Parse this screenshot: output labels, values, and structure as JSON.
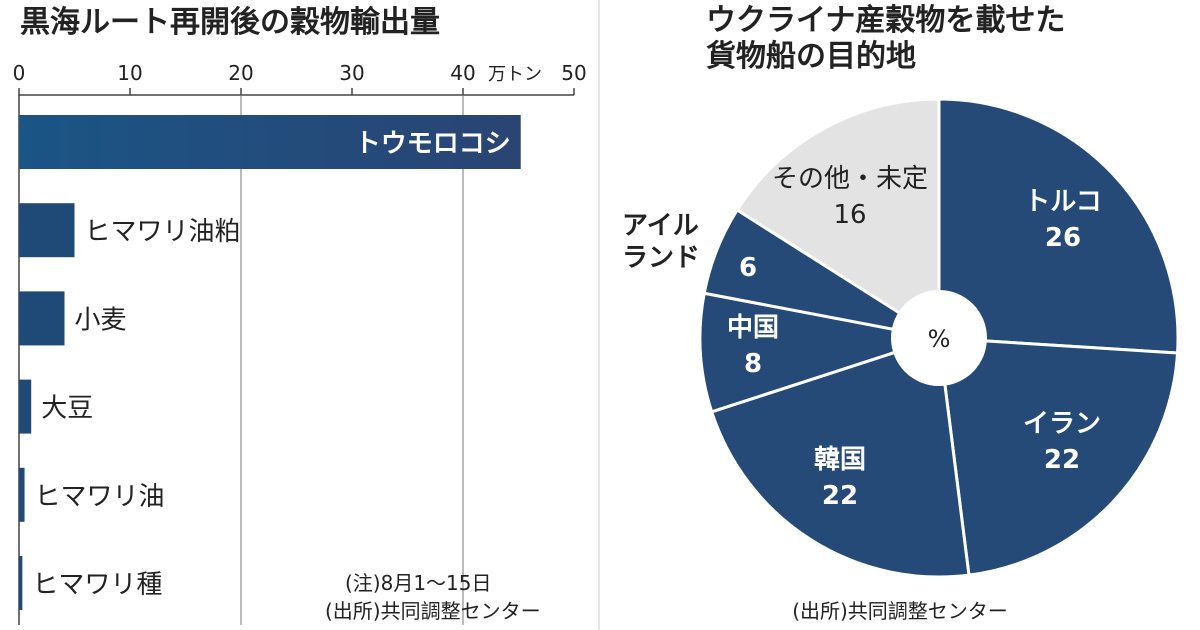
{
  "chart_data": [
    {
      "type": "bar",
      "orientation": "horizontal",
      "title": "黒海ルート再開後の穀物輸出量",
      "unit_label": "万トン",
      "xlim": [
        0,
        50
      ],
      "ticks": [
        0,
        10,
        20,
        30,
        40,
        50
      ],
      "gridlines": [
        20,
        40
      ],
      "categories": [
        "トウモロコシ",
        "ヒマワリ油粕",
        "小麦",
        "大豆",
        "ヒマワリ油",
        "ヒマワリ種"
      ],
      "values": [
        45.2,
        5.0,
        4.1,
        1.1,
        0.5,
        0.3
      ],
      "note": "(注)8月1～15日",
      "source": "(出所)共同調整センター",
      "bar_color": "#1f4a78"
    },
    {
      "type": "pie",
      "title_lines": [
        "ウクライナ産穀物を載せた",
        "貨物船の目的地"
      ],
      "center_label": "%",
      "slices": [
        {
          "label": "トルコ",
          "value": 26,
          "color": "#264a78"
        },
        {
          "label": "イラン",
          "value": 22,
          "color": "#264a78"
        },
        {
          "label": "韓国",
          "value": 22,
          "color": "#264a78"
        },
        {
          "label": "中国",
          "value": 8,
          "color": "#264a78"
        },
        {
          "label": "アイルランド",
          "label_lines": [
            "アイル",
            "ランド"
          ],
          "value": 6,
          "color": "#264a78"
        },
        {
          "label": "その他・未定",
          "value": 16,
          "color": "#e3e3e3"
        }
      ],
      "source": "(出所)共同調整センター"
    }
  ]
}
